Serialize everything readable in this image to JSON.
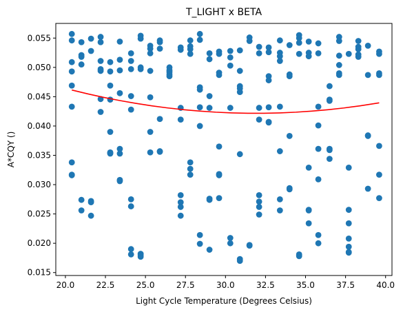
{
  "chart_data": {
    "type": "scatter",
    "title": "T_LIGHT x BETA",
    "xlabel": "Light Cycle Temperature (Degrees Celsius)",
    "ylabel": "A*CQY ()",
    "xlim": [
      19.4,
      40.4
    ],
    "ylim": [
      0.0145,
      0.0575
    ],
    "xticks": [
      20.0,
      22.5,
      25.0,
      27.5,
      30.0,
      32.5,
      35.0,
      37.5,
      40.0
    ],
    "xtick_labels": [
      "20.0",
      "22.5",
      "25.0",
      "27.5",
      "30.0",
      "32.5",
      "35.0",
      "37.5",
      "40.0"
    ],
    "yticks": [
      0.015,
      0.02,
      0.025,
      0.03,
      0.035,
      0.04,
      0.045,
      0.05,
      0.055
    ],
    "ytick_labels": [
      "0.015",
      "0.020",
      "0.025",
      "0.030",
      "0.035",
      "0.040",
      "0.045",
      "0.050",
      "0.055"
    ],
    "grid": false,
    "colors": {
      "points": "#1f77b4",
      "fit": "#ff0000"
    },
    "series": [
      {
        "type": "scatter",
        "x": [
          20.4,
          20.4,
          20.4,
          20.4,
          20.4,
          20.4,
          20.4,
          20.4,
          20.4,
          21,
          21,
          21,
          21,
          21,
          21,
          21.6,
          21.6,
          21.6,
          21.6,
          21.6,
          22.2,
          22.2,
          22.2,
          22.2,
          22.2,
          22.2,
          22.2,
          22.8,
          22.8,
          22.8,
          22.8,
          22.8,
          22.8,
          22.8,
          22.8,
          23.4,
          23.4,
          23.4,
          23.4,
          23.4,
          23.4,
          23.4,
          23.4,
          24.1,
          24.1,
          24.1,
          24.1,
          24.1,
          24.1,
          24.1,
          24.1,
          24.1,
          24.7,
          24.7,
          24.7,
          24.7,
          24.7,
          24.7,
          24.7,
          25.3,
          25.3,
          25.3,
          25.3,
          25.3,
          25.3,
          25.3,
          25.9,
          25.9,
          25.9,
          25.9,
          25.9,
          25.9,
          26.5,
          26.5,
          26.5,
          26.5,
          26.5,
          27.2,
          27.2,
          27.2,
          27.2,
          27.2,
          27.2,
          27.2,
          27.2,
          27.8,
          27.8,
          27.8,
          27.8,
          27.8,
          27.8,
          27.8,
          28.4,
          28.4,
          28.4,
          28.4,
          28.4,
          28.4,
          28.4,
          28.4,
          29,
          29,
          29,
          29,
          29,
          29,
          29,
          29.6,
          29.6,
          29.6,
          29.6,
          29.6,
          29.6,
          29.6,
          29.6,
          30.3,
          30.3,
          30.3,
          30.3,
          30.3,
          30.3,
          30.9,
          30.9,
          30.9,
          30.9,
          30.9,
          30.9,
          30.9,
          30.9,
          31.5,
          31.5,
          31.5,
          31.5,
          32.1,
          32.1,
          32.1,
          32.1,
          32.1,
          32.1,
          32.1,
          32.1,
          32.7,
          32.7,
          32.7,
          32.7,
          32.7,
          32.7,
          32.7,
          33.4,
          33.4,
          33.4,
          33.4,
          33.4,
          33.4,
          33.4,
          33.4,
          34,
          34,
          34,
          34,
          34,
          34,
          34.6,
          34.6,
          34.6,
          34.6,
          34.6,
          34.6,
          34.6,
          35.2,
          35.2,
          35.2,
          35.2,
          35.2,
          35.2,
          35.2,
          35.8,
          35.8,
          35.8,
          35.8,
          35.8,
          35.8,
          35.8,
          35.8,
          36.5,
          36.5,
          36.5,
          36.5,
          36.5,
          36.5,
          37.1,
          37.1,
          37.1,
          37.1,
          37.1,
          37.1,
          37.7,
          37.7,
          37.7,
          37.7,
          37.7,
          37.7,
          37.7,
          37.7,
          38.3,
          38.3,
          38.3,
          38.3,
          38.3,
          38.9,
          38.9,
          38.9,
          38.9,
          38.9,
          39.6,
          39.6,
          39.6,
          39.6,
          39.6,
          39.6,
          39.6
        ],
        "y": [
          0.0557,
          0.0546,
          0.0509,
          0.0493,
          0.0469,
          0.0433,
          0.0338,
          0.0317,
          0.0316,
          0.0543,
          0.0521,
          0.0518,
          0.0505,
          0.0274,
          0.0256,
          0.0549,
          0.0528,
          0.0272,
          0.027,
          0.0247,
          0.0552,
          0.0543,
          0.0511,
          0.0497,
          0.0494,
          0.0446,
          0.0424,
          0.0509,
          0.0493,
          0.0469,
          0.0445,
          0.039,
          0.0355,
          0.0353,
          0.0354,
          0.0544,
          0.0513,
          0.0495,
          0.0456,
          0.0361,
          0.0353,
          0.0308,
          0.0306,
          0.0524,
          0.0511,
          0.0497,
          0.0451,
          0.0428,
          0.0275,
          0.0263,
          0.019,
          0.0181,
          0.0554,
          0.0549,
          0.05,
          0.0497,
          0.0182,
          0.018,
          0.0177,
          0.0537,
          0.0532,
          0.0524,
          0.0494,
          0.0449,
          0.039,
          0.0355,
          0.0546,
          0.0543,
          0.0532,
          0.0412,
          0.0357,
          0.0356,
          0.05,
          0.0495,
          0.0492,
          0.0488,
          0.0485,
          0.0534,
          0.053,
          0.0431,
          0.0411,
          0.0282,
          0.027,
          0.0262,
          0.0247,
          0.0546,
          0.0536,
          0.0531,
          0.0523,
          0.0338,
          0.0327,
          0.0317,
          0.0557,
          0.0547,
          0.0466,
          0.0462,
          0.0432,
          0.04,
          0.0214,
          0.0199,
          0.0524,
          0.0514,
          0.0451,
          0.0431,
          0.0276,
          0.0274,
          0.0189,
          0.0527,
          0.0523,
          0.0491,
          0.0487,
          0.0365,
          0.0318,
          0.0316,
          0.0277,
          0.0528,
          0.0517,
          0.0503,
          0.0431,
          0.0209,
          0.02,
          0.0529,
          0.0494,
          0.0468,
          0.0464,
          0.0458,
          0.0352,
          0.0173,
          0.017,
          0.0551,
          0.0545,
          0.0197,
          0.0196,
          0.0535,
          0.0524,
          0.0431,
          0.0411,
          0.0282,
          0.0271,
          0.0262,
          0.0249,
          0.0534,
          0.0526,
          0.0485,
          0.0478,
          0.0432,
          0.0407,
          0.0406,
          0.0546,
          0.0525,
          0.0519,
          0.0511,
          0.0433,
          0.0357,
          0.0275,
          0.0256,
          0.0538,
          0.0488,
          0.0485,
          0.0383,
          0.0294,
          0.0292,
          0.0555,
          0.055,
          0.0542,
          0.0523,
          0.0181,
          0.0179,
          0.0178,
          0.0544,
          0.0525,
          0.0519,
          0.0329,
          0.0257,
          0.0256,
          0.0234,
          0.0541,
          0.0524,
          0.0433,
          0.0401,
          0.0361,
          0.0309,
          0.0214,
          0.02,
          0.0468,
          0.0445,
          0.0443,
          0.0361,
          0.0359,
          0.0344,
          0.0552,
          0.0545,
          0.052,
          0.0504,
          0.049,
          0.0487,
          0.0523,
          0.0329,
          0.0257,
          0.0234,
          0.0208,
          0.0194,
          0.0185,
          0.0184,
          0.0545,
          0.0535,
          0.0531,
          0.0522,
          0.0518,
          0.0537,
          0.0487,
          0.0384,
          0.0383,
          0.0293,
          0.0527,
          0.0523,
          0.049,
          0.0487,
          0.0366,
          0.0317,
          0.0277
        ]
      },
      {
        "type": "line",
        "x": [
          20.4,
          21.4,
          22.4,
          23.4,
          24.4,
          25.4,
          26.4,
          27.4,
          28.4,
          29.4,
          30.4,
          31.4,
          32.4,
          33.4,
          34.4,
          35.4,
          36.4,
          37.4,
          38.4,
          39.4,
          39.6
        ],
        "y": [
          0.04614,
          0.04548,
          0.04488,
          0.04434,
          0.04386,
          0.04344,
          0.04308,
          0.04278,
          0.04254,
          0.04236,
          0.04224,
          0.04218,
          0.04218,
          0.04224,
          0.04236,
          0.04254,
          0.04278,
          0.04308,
          0.04344,
          0.04386,
          0.04395
        ]
      }
    ]
  }
}
